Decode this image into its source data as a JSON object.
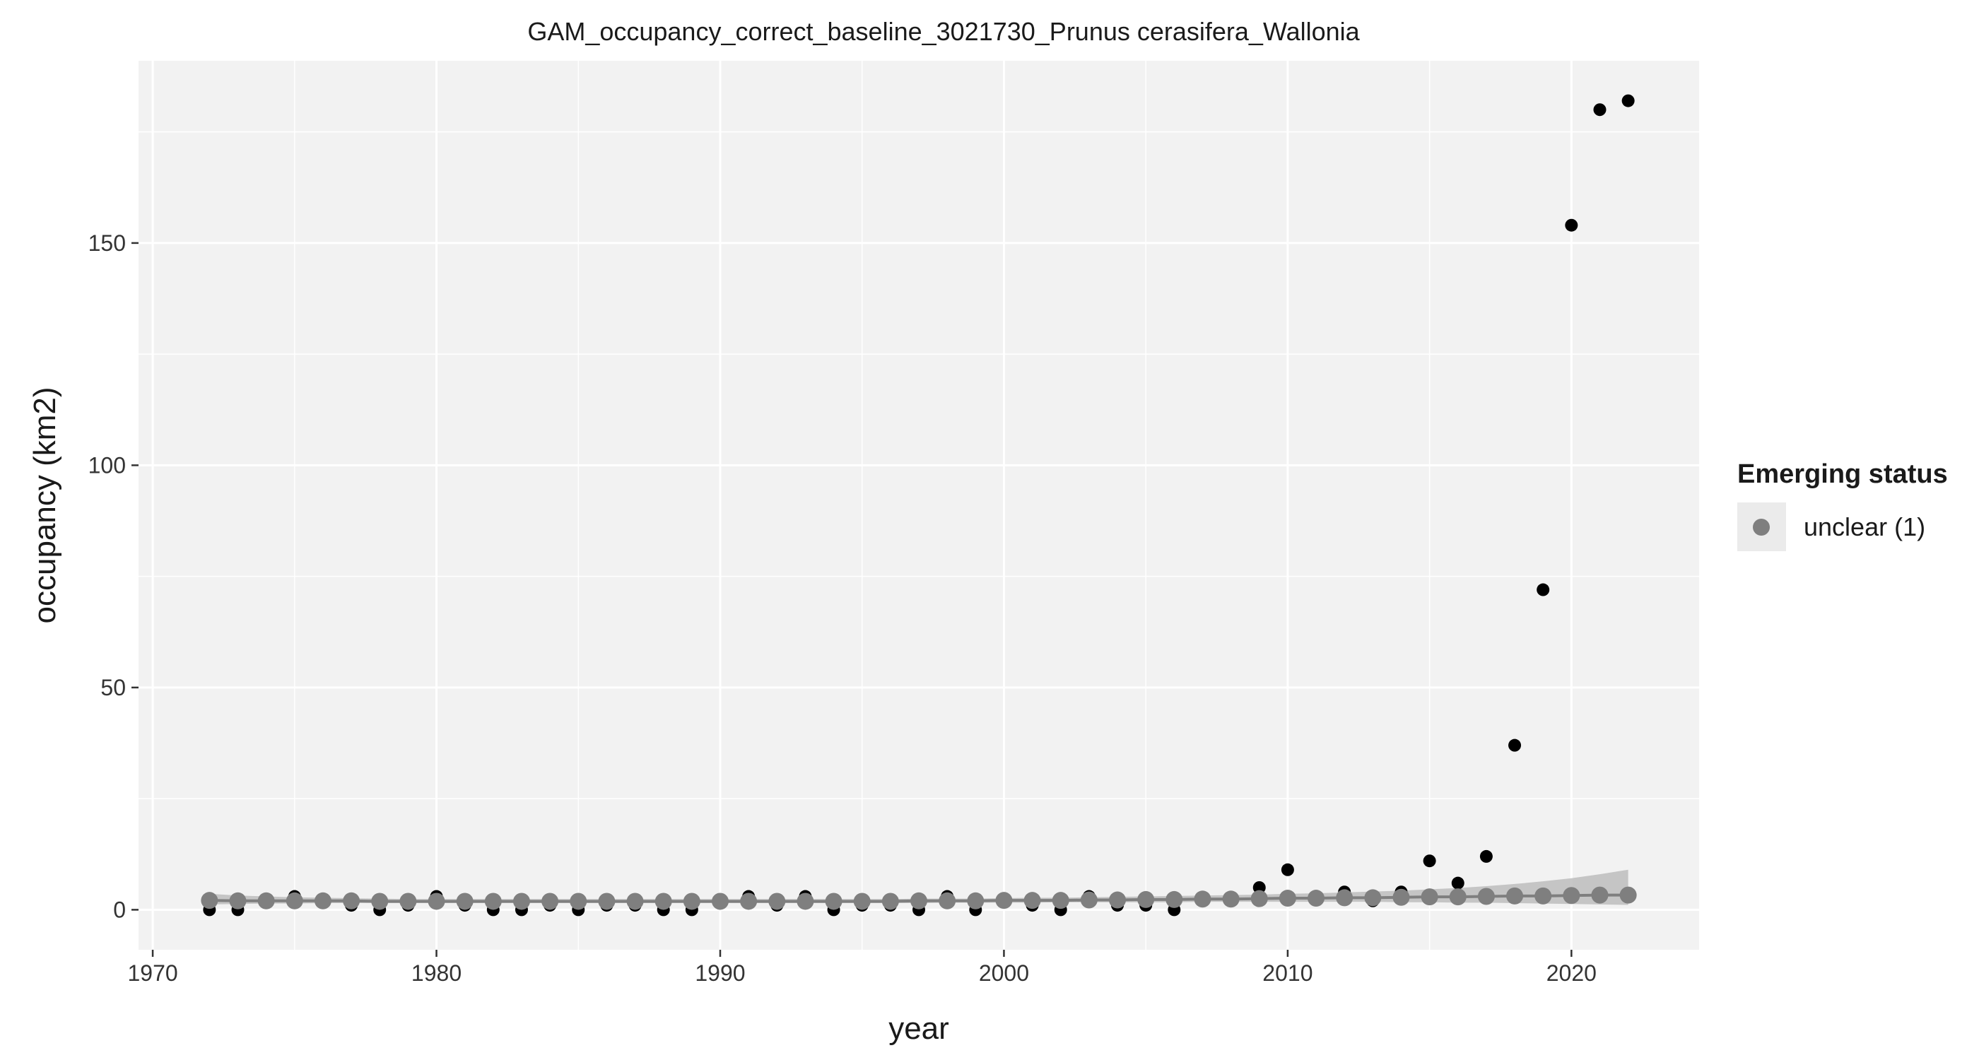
{
  "colors": {
    "panel_background": "#f2f2f2",
    "grid_major": "#ffffff",
    "observed_point": "#000000",
    "fitted_point": "#7f7f7f",
    "fitted_line": "#7f7f7f",
    "confidence_band": "#bdbdbd",
    "legend_key_background": "#ebebeb"
  },
  "chart_data": {
    "type": "scatter",
    "title": "GAM_occupancy_correct_baseline_3021730_Prunus cerasifera_Wallonia",
    "xlabel": "year",
    "ylabel": "occupancy (km2)",
    "xlim": [
      1969.5,
      2024.5
    ],
    "ylim": [
      -9,
      191
    ],
    "x_ticks": [
      1970,
      1980,
      1990,
      2000,
      2010,
      2020
    ],
    "x_tick_labels": [
      "1970",
      "1980",
      "1990",
      "2000",
      "2010",
      "2020"
    ],
    "y_ticks": [
      0,
      50,
      100,
      150
    ],
    "y_tick_labels": [
      "0",
      "50",
      "100",
      "150"
    ],
    "grid": true,
    "legend": {
      "title": "Emerging status",
      "position": "right",
      "entries": [
        {
          "label": "unclear (1)",
          "color": "#7f7f7f"
        }
      ]
    },
    "series": [
      {
        "kind": "observed",
        "marker": "point",
        "color": "#000000",
        "x": [
          1972,
          1973,
          1975,
          1977,
          1978,
          1979,
          1980,
          1981,
          1982,
          1983,
          1984,
          1985,
          1986,
          1987,
          1988,
          1989,
          1990,
          1991,
          1992,
          1993,
          1994,
          1995,
          1996,
          1997,
          1998,
          1999,
          2000,
          2001,
          2002,
          2003,
          2004,
          2005,
          2006,
          2009,
          2010,
          2012,
          2013,
          2014,
          2015,
          2016,
          2017,
          2018,
          2019,
          2020,
          2021,
          2022
        ],
        "y": [
          0,
          0,
          3,
          1,
          0,
          1,
          3,
          1,
          0,
          0,
          1,
          0,
          1,
          1,
          0,
          0,
          2,
          3,
          1,
          3,
          0,
          1,
          1,
          0,
          3,
          0,
          2,
          1,
          0,
          3,
          1,
          1,
          0,
          5,
          9,
          4,
          2,
          4,
          11,
          6,
          12,
          37,
          72,
          154,
          180,
          182
        ]
      },
      {
        "name": "unclear (1)",
        "kind": "fitted",
        "marker": "point+line",
        "color": "#7f7f7f",
        "x": [
          1972,
          1973,
          1974,
          1975,
          1976,
          1977,
          1978,
          1979,
          1980,
          1981,
          1982,
          1983,
          1984,
          1985,
          1986,
          1987,
          1988,
          1989,
          1990,
          1991,
          1992,
          1993,
          1994,
          1995,
          1996,
          1997,
          1998,
          1999,
          2000,
          2001,
          2002,
          2003,
          2004,
          2005,
          2006,
          2007,
          2008,
          2009,
          2010,
          2011,
          2012,
          2013,
          2014,
          2015,
          2016,
          2017,
          2018,
          2019,
          2020,
          2021,
          2022
        ],
        "y": [
          2.1,
          2.0,
          2.0,
          2.0,
          2.0,
          2.0,
          1.9,
          1.9,
          1.9,
          1.9,
          1.9,
          1.9,
          1.9,
          1.9,
          1.9,
          1.9,
          1.9,
          1.9,
          1.9,
          1.9,
          1.9,
          1.9,
          1.9,
          1.9,
          1.9,
          2.0,
          2.0,
          2.0,
          2.1,
          2.1,
          2.1,
          2.2,
          2.2,
          2.3,
          2.3,
          2.4,
          2.4,
          2.5,
          2.6,
          2.6,
          2.7,
          2.7,
          2.8,
          2.9,
          2.9,
          3.0,
          3.1,
          3.1,
          3.2,
          3.3,
          3.3
        ],
        "lower": [
          1.2,
          1.3,
          1.4,
          1.4,
          1.5,
          1.5,
          1.5,
          1.5,
          1.5,
          1.5,
          1.5,
          1.5,
          1.5,
          1.5,
          1.5,
          1.5,
          1.5,
          1.5,
          1.5,
          1.5,
          1.5,
          1.5,
          1.5,
          1.5,
          1.5,
          1.5,
          1.6,
          1.6,
          1.6,
          1.6,
          1.7,
          1.7,
          1.7,
          1.7,
          1.7,
          1.8,
          1.8,
          1.8,
          1.8,
          1.8,
          1.8,
          1.8,
          1.7,
          1.7,
          1.6,
          1.6,
          1.5,
          1.4,
          1.3,
          1.2,
          1.1
        ],
        "upper": [
          3.6,
          3.2,
          3.0,
          2.8,
          2.7,
          2.6,
          2.5,
          2.4,
          2.4,
          2.4,
          2.4,
          2.4,
          2.4,
          2.4,
          2.4,
          2.4,
          2.4,
          2.4,
          2.4,
          2.4,
          2.4,
          2.4,
          2.4,
          2.4,
          2.4,
          2.5,
          2.5,
          2.5,
          2.6,
          2.7,
          2.7,
          2.8,
          2.9,
          3.0,
          3.1,
          3.2,
          3.3,
          3.4,
          3.6,
          3.7,
          3.9,
          4.1,
          4.3,
          4.6,
          4.9,
          5.3,
          5.8,
          6.4,
          7.1,
          8.0,
          9.0
        ]
      }
    ]
  }
}
